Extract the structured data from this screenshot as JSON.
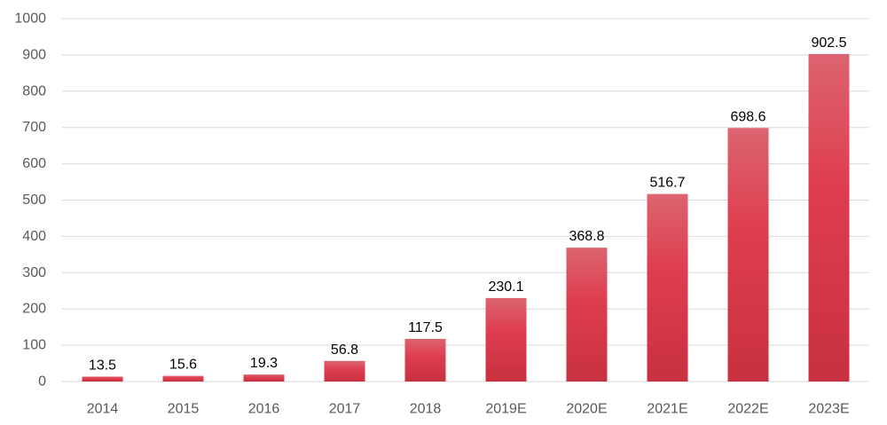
{
  "chart_data": {
    "type": "bar",
    "title": "",
    "xlabel": "",
    "ylabel": "",
    "categories": [
      "2014",
      "2015",
      "2016",
      "2017",
      "2018",
      "2019E",
      "2020E",
      "2021E",
      "2022E",
      "2023E"
    ],
    "values": [
      13.5,
      15.6,
      19.3,
      56.8,
      117.5,
      230.1,
      368.8,
      516.7,
      698.6,
      902.5
    ],
    "data_labels": [
      "13.5",
      "15.6",
      "19.3",
      "56.8",
      "117.5",
      "230.1",
      "368.8",
      "516.7",
      "698.6",
      "902.5"
    ],
    "ylim": [
      0,
      1000
    ],
    "yticks": [
      0,
      100,
      200,
      300,
      400,
      500,
      600,
      700,
      800,
      900,
      1000
    ],
    "ytick_labels": [
      "0",
      "100",
      "200",
      "300",
      "400",
      "500",
      "600",
      "700",
      "800",
      "900",
      "1000"
    ],
    "grid": true,
    "legend": "none",
    "colors": {
      "bar_top": "#dc6470",
      "bar_mid": "#de3e4f",
      "bar_bottom": "#c8313f"
    }
  }
}
